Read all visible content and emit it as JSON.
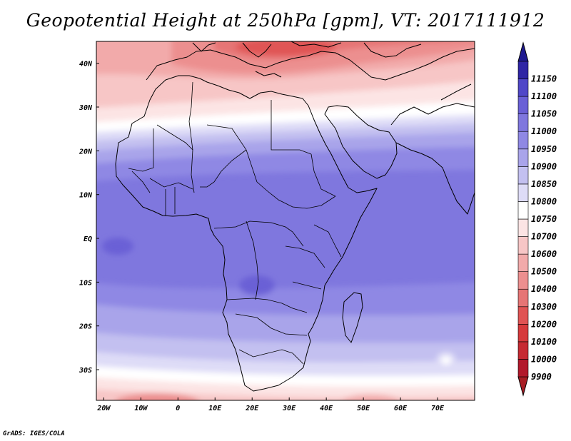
{
  "title": "Geopotential Height at 250hPa [gpm], VT: 2017111912",
  "credit": "GrADS: IGES/COLA",
  "map": {
    "lon_range": [
      -22,
      80
    ],
    "lat_range": [
      -37,
      45
    ],
    "x_ticks": [
      {
        "lon": -20,
        "label": "20W"
      },
      {
        "lon": -10,
        "label": "10W"
      },
      {
        "lon": 0,
        "label": "0"
      },
      {
        "lon": 10,
        "label": "10E"
      },
      {
        "lon": 20,
        "label": "20E"
      },
      {
        "lon": 30,
        "label": "30E"
      },
      {
        "lon": 40,
        "label": "40E"
      },
      {
        "lon": 50,
        "label": "50E"
      },
      {
        "lon": 60,
        "label": "60E"
      },
      {
        "lon": 70,
        "label": "70E"
      }
    ],
    "y_ticks": [
      {
        "lat": 40,
        "label": "40N"
      },
      {
        "lat": 30,
        "label": "30N"
      },
      {
        "lat": 20,
        "label": "20N"
      },
      {
        "lat": 10,
        "label": "10N"
      },
      {
        "lat": 0,
        "label": "EQ"
      },
      {
        "lat": -10,
        "label": "10S"
      },
      {
        "lat": -20,
        "label": "20S"
      },
      {
        "lat": -30,
        "label": "30S"
      }
    ]
  },
  "colorbar": {
    "levels": [
      {
        "label": "9900",
        "color": "#b2182b"
      },
      {
        "label": "10000",
        "color": "#c62a32"
      },
      {
        "label": "10100",
        "color": "#d63a3c"
      },
      {
        "label": "10200",
        "color": "#e05454"
      },
      {
        "label": "10300",
        "color": "#e67575"
      },
      {
        "label": "10400",
        "color": "#ec8f8f"
      },
      {
        "label": "10500",
        "color": "#f2aaaa"
      },
      {
        "label": "10600",
        "color": "#f7c6c6"
      },
      {
        "label": "10700",
        "color": "#fce4e4"
      },
      {
        "label": "10750",
        "color": "#ffffff"
      },
      {
        "label": "10800",
        "color": "#dedcf7"
      },
      {
        "label": "10850",
        "color": "#c3c0f0"
      },
      {
        "label": "10900",
        "color": "#a9a4ea"
      },
      {
        "label": "10950",
        "color": "#8f88e4"
      },
      {
        "label": "11000",
        "color": "#7f77de"
      },
      {
        "label": "11050",
        "color": "#6a60d6"
      },
      {
        "label": "11100",
        "color": "#5047c8"
      },
      {
        "label": "11150",
        "color": "#2f25a5"
      }
    ],
    "top_arrow_color": "#1f1a90",
    "bottom_arrow_color": "#a81d24"
  }
}
